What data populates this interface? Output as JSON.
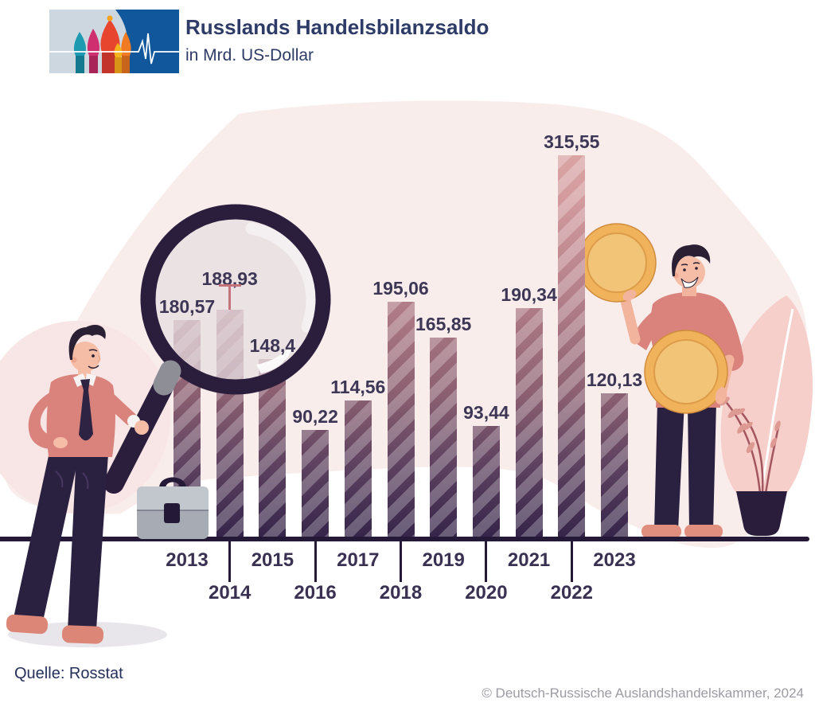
{
  "header": {
    "title": "Russlands Handelsbilanzsaldo",
    "subtitle": "in Mrd. US-Dollar",
    "logo_icons": [
      "st-basils-cathedral-icon",
      "ecg-pulse-icon"
    ]
  },
  "chart_data": {
    "type": "bar",
    "title": "Russlands Handelsbilanzsaldo",
    "ylabel": "Mrd. US-Dollar",
    "categories": [
      "2013",
      "2014",
      "2015",
      "2016",
      "2017",
      "2018",
      "2019",
      "2020",
      "2021",
      "2022",
      "2023"
    ],
    "values": [
      180.57,
      188.93,
      148.4,
      90.22,
      114.56,
      195.06,
      165.85,
      93.44,
      190.34,
      315.55,
      120.13
    ],
    "value_labels": [
      "180,57",
      "188,93",
      "148,4",
      "90,22",
      "114,56",
      "195,06",
      "165,85",
      "93,44",
      "190,34",
      "315,55",
      "120,13"
    ],
    "annotation_pin_year": "2014",
    "ylim": [
      0,
      330
    ],
    "grid": false,
    "legend": "none",
    "bar_color_top": "#dca7a7",
    "bar_color_bottom": "#342449",
    "axis_color": "#241936",
    "label_color": "#3d3655"
  },
  "footer": {
    "source": "Quelle: Rosstat",
    "copyright": "© Deutsch-Russische Auslandshandelskammer, 2024"
  },
  "colors": {
    "background_blob": "#f9edec",
    "figure_shirt": "#d9837c",
    "figure_pants": "#2a2040",
    "coin_gold": "#f0b25b",
    "magnifier_ring": "#2b1e3d",
    "logo_blue": "#10579c"
  },
  "illustrations": [
    "man-with-magnifying-glass",
    "briefcase",
    "person-holding-coins",
    "potted-plant",
    "feather-leaf"
  ]
}
